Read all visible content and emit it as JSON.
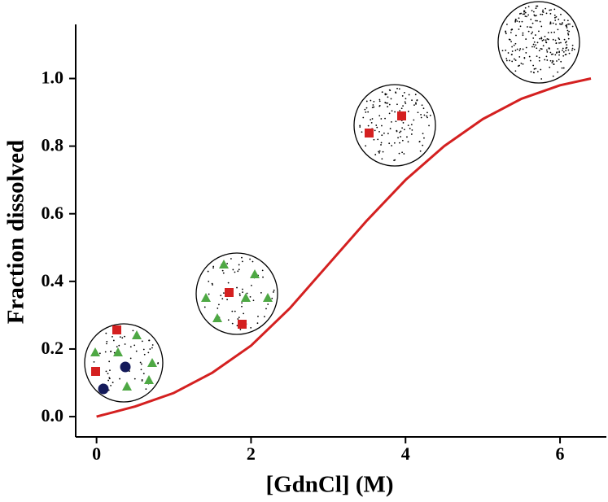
{
  "chart_data": {
    "type": "line",
    "xlabel": "[GdnCl] (M)",
    "ylabel": "Fraction dissolved",
    "x": [
      0,
      0.5,
      1,
      1.5,
      2,
      2.5,
      3,
      3.5,
      4,
      4.5,
      5,
      5.5,
      6,
      6.4
    ],
    "values": [
      0,
      0.03,
      0.07,
      0.13,
      0.21,
      0.32,
      0.45,
      0.58,
      0.7,
      0.8,
      0.88,
      0.94,
      0.98,
      1.0
    ],
    "color": "#d42020",
    "xlim": [
      -0.27,
      6.6
    ],
    "xticks": [
      0,
      2,
      4,
      6
    ],
    "ylim": [
      -0.06,
      1.16
    ],
    "yticks": [
      {
        "value": 0,
        "label": "0.0"
      },
      0.2,
      0.4,
      0.6,
      0.8,
      {
        "value": 1,
        "label": "1.0"
      }
    ]
  }
}
